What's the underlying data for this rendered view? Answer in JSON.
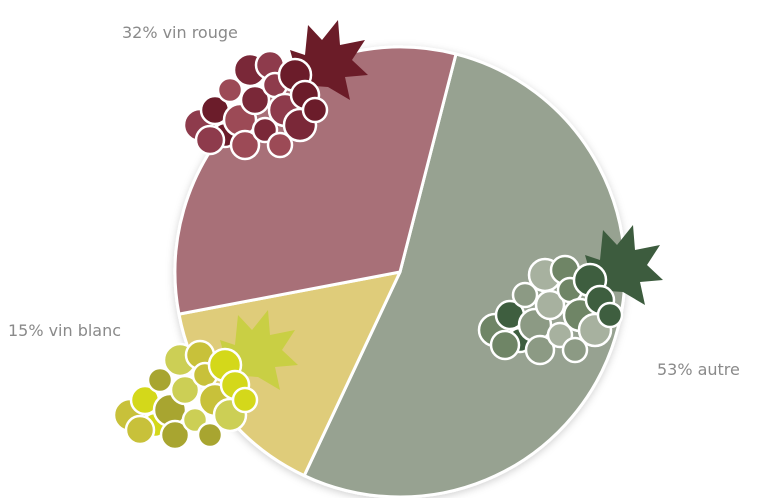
{
  "chart_data": {
    "type": "pie",
    "categories": [
      "autre",
      "vin blanc",
      "vin rouge"
    ],
    "values": [
      53,
      15,
      32
    ],
    "value_labels": [
      "53%",
      "15%",
      "32%"
    ],
    "colors": [
      "#97a291",
      "#dfcc7a",
      "#a87078"
    ]
  }
}
